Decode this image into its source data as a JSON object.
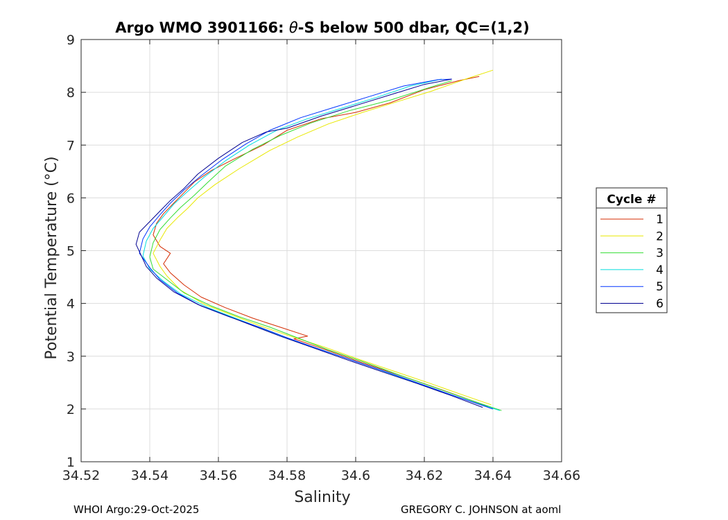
{
  "chart_data": {
    "type": "line",
    "title": "Argo WMO 3901166: θ-S below 500 dbar,  QC=(1,2)",
    "title_parts": {
      "prefix": "Argo WMO 3901166: ",
      "theta": "θ",
      "suffix": "-S below 500 dbar,  QC=(1,2)"
    },
    "xlabel": "Salinity",
    "ylabel": "Potential Temperature (°C)",
    "xlim": [
      34.52,
      34.66
    ],
    "ylim": [
      1,
      9
    ],
    "xticks": [
      "34.52",
      "34.54",
      "34.56",
      "34.58",
      "34.6",
      "34.62",
      "34.64",
      "34.66"
    ],
    "yticks": [
      "1",
      "2",
      "3",
      "4",
      "5",
      "6",
      "7",
      "8",
      "9"
    ],
    "grid": true,
    "legend": {
      "title": "Cycle #",
      "placement": "outside-right"
    },
    "series": [
      {
        "name": "1",
        "color": "#d42b00",
        "x": [
          34.6385,
          34.63,
          34.62,
          34.61,
          34.6,
          34.59,
          34.582,
          34.586,
          34.578,
          34.57,
          34.562,
          34.555,
          34.55,
          34.546,
          34.544,
          34.546,
          34.543,
          34.541,
          34.542,
          34.544,
          34.547,
          34.55,
          34.553,
          34.558,
          34.565,
          34.573,
          34.58,
          34.59,
          34.6,
          34.61,
          34.62,
          34.63,
          34.636
        ],
        "y": [
          2.05,
          2.25,
          2.48,
          2.7,
          2.92,
          3.15,
          3.33,
          3.38,
          3.55,
          3.72,
          3.92,
          4.12,
          4.35,
          4.58,
          4.75,
          4.95,
          5.08,
          5.3,
          5.52,
          5.7,
          5.9,
          6.1,
          6.3,
          6.52,
          6.75,
          7.0,
          7.28,
          7.5,
          7.62,
          7.8,
          8.05,
          8.22,
          8.3
        ]
      },
      {
        "name": "2",
        "color": "#e8e800",
        "x": [
          34.6395,
          34.631,
          34.621,
          34.611,
          34.601,
          34.591,
          34.58,
          34.572,
          34.564,
          34.556,
          34.549,
          34.545,
          34.543,
          34.541,
          34.543,
          34.545,
          34.548,
          34.551,
          34.554,
          34.559,
          34.566,
          34.575,
          34.583,
          34.592,
          34.602,
          34.612,
          34.622,
          34.632,
          34.64
        ],
        "y": [
          2.08,
          2.27,
          2.5,
          2.72,
          2.94,
          3.17,
          3.4,
          3.58,
          3.78,
          3.98,
          4.25,
          4.52,
          4.7,
          4.95,
          5.2,
          5.42,
          5.62,
          5.8,
          6.0,
          6.25,
          6.55,
          6.9,
          7.15,
          7.4,
          7.62,
          7.82,
          8.02,
          8.25,
          8.42
        ]
      },
      {
        "name": "3",
        "color": "#33dd33",
        "x": [
          34.6425,
          34.632,
          34.622,
          34.612,
          34.602,
          34.592,
          34.583,
          34.575,
          34.566,
          34.558,
          34.55,
          34.545,
          34.541,
          34.54,
          34.541,
          34.543,
          34.546,
          34.549,
          34.553,
          34.557,
          34.562,
          34.57,
          34.578,
          34.587,
          34.598,
          34.61,
          34.622,
          34.628
        ],
        "y": [
          1.97,
          2.2,
          2.43,
          2.66,
          2.9,
          3.12,
          3.35,
          3.55,
          3.75,
          3.95,
          4.2,
          4.45,
          4.65,
          4.88,
          5.15,
          5.4,
          5.62,
          5.82,
          6.05,
          6.3,
          6.6,
          6.92,
          7.18,
          7.42,
          7.65,
          7.85,
          8.1,
          8.22
        ]
      },
      {
        "name": "4",
        "color": "#00dddd",
        "x": [
          34.642,
          34.631,
          34.621,
          34.611,
          34.601,
          34.591,
          34.581,
          34.573,
          34.565,
          34.557,
          34.549,
          34.544,
          34.54,
          34.538,
          34.539,
          34.541,
          34.544,
          34.547,
          34.551,
          34.556,
          34.562,
          34.569,
          34.577,
          34.586,
          34.596,
          34.606,
          34.616,
          34.625
        ],
        "y": [
          1.97,
          2.2,
          2.42,
          2.65,
          2.88,
          3.1,
          3.32,
          3.52,
          3.72,
          3.92,
          4.18,
          4.42,
          4.65,
          4.9,
          5.18,
          5.42,
          5.65,
          5.88,
          6.12,
          6.4,
          6.7,
          7.0,
          7.28,
          7.5,
          7.7,
          7.9,
          8.12,
          8.25
        ]
      },
      {
        "name": "5",
        "color": "#0033ff",
        "x": [
          34.64,
          34.63,
          34.62,
          34.61,
          34.6,
          34.59,
          34.58,
          34.572,
          34.563,
          34.555,
          34.548,
          34.543,
          34.54,
          34.537,
          34.538,
          34.54,
          34.543,
          34.546,
          34.55,
          34.555,
          34.561,
          34.568,
          34.575,
          34.584,
          34.594,
          34.604,
          34.614,
          34.624,
          34.628
        ],
        "y": [
          2.0,
          2.22,
          2.45,
          2.68,
          2.9,
          3.12,
          3.35,
          3.55,
          3.75,
          3.95,
          4.2,
          4.45,
          4.68,
          4.95,
          5.22,
          5.45,
          5.68,
          5.9,
          6.15,
          6.42,
          6.72,
          7.02,
          7.28,
          7.52,
          7.72,
          7.92,
          8.12,
          8.24,
          8.25
        ]
      },
      {
        "name": "6",
        "color": "#000090",
        "x": [
          34.637,
          34.628,
          34.618,
          34.608,
          34.598,
          34.588,
          34.578,
          34.57,
          34.562,
          34.554,
          34.547,
          34.542,
          34.539,
          34.536,
          34.537,
          34.54,
          34.543,
          34.546,
          34.55,
          34.554,
          34.56,
          34.567,
          34.574,
          34.58,
          34.59,
          34.6,
          34.61,
          34.62,
          34.628
        ],
        "y": [
          2.03,
          2.25,
          2.48,
          2.7,
          2.92,
          3.15,
          3.38,
          3.58,
          3.78,
          3.98,
          4.22,
          4.48,
          4.7,
          5.12,
          5.35,
          5.55,
          5.75,
          5.95,
          6.18,
          6.45,
          6.75,
          7.05,
          7.25,
          7.32,
          7.55,
          7.75,
          7.95,
          8.15,
          8.25
        ]
      }
    ]
  },
  "footer": {
    "left": "WHOI Argo:29-Oct-2025",
    "right": "GREGORY C. JOHNSON at aoml"
  }
}
